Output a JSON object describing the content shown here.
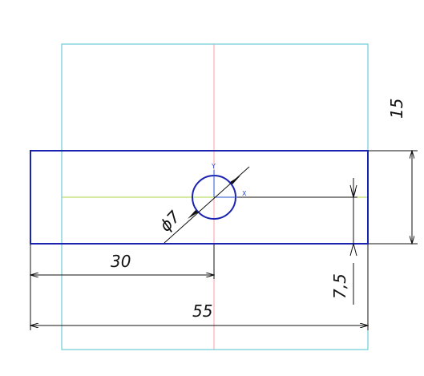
{
  "drawing": {
    "dimensions": {
      "width_total": "55",
      "offset_to_hole": "30",
      "part_height": "15",
      "hole_offset": "7,5",
      "hole_diameter": "ϕ7"
    },
    "axis_labels": {
      "x": "X",
      "y": "Y"
    },
    "colors": {
      "frame": "#4fc3d0",
      "centerline_vertical": "#f0a0a8",
      "centerline_horizontal": "#a8d840",
      "part_outline": "#1a22b0",
      "dimension_lines": "#111111",
      "hole": "#1a22b0",
      "coordinate_marker": "#2a50d0"
    }
  }
}
